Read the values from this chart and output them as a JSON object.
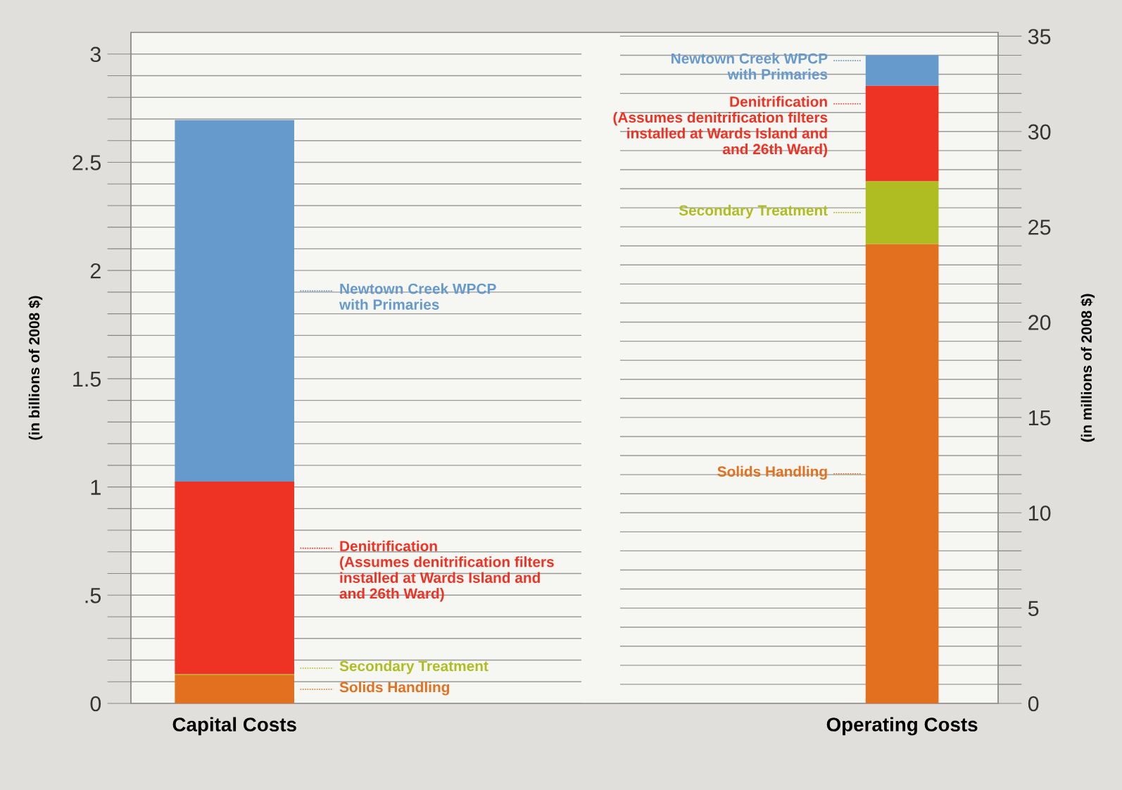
{
  "chart_data": [
    {
      "type": "bar",
      "stacked": true,
      "legend": "right",
      "categories": [
        "Capital Costs"
      ],
      "ylabel": "(in billions of 2008 $)",
      "ylim": [
        0,
        3.1
      ],
      "grid": "y",
      "yticks": [
        0,
        {
          "value": 0.1,
          "label": null
        },
        {
          "value": 0.2,
          "label": null
        },
        {
          "value": 0.3,
          "label": null
        },
        {
          "value": 0.4,
          "label": null
        },
        {
          "value": 0.5,
          "label": ".5"
        },
        {
          "value": 0.6,
          "label": null
        },
        {
          "value": 0.7,
          "label": null
        },
        {
          "value": 0.8,
          "label": null
        },
        {
          "value": 0.9,
          "label": null
        },
        1,
        {
          "value": 1.1,
          "label": null
        },
        {
          "value": 1.2,
          "label": null
        },
        {
          "value": 1.3,
          "label": null
        },
        {
          "value": 1.4,
          "label": null
        },
        1.5,
        {
          "value": 1.6,
          "label": null
        },
        {
          "value": 1.7,
          "label": null
        },
        {
          "value": 1.8,
          "label": null
        },
        {
          "value": 1.9,
          "label": null
        },
        2,
        {
          "value": 2.1,
          "label": null
        },
        {
          "value": 2.2,
          "label": null
        },
        {
          "value": 2.3,
          "label": null
        },
        {
          "value": 2.4,
          "label": null
        },
        2.5,
        {
          "value": 2.6,
          "label": null
        },
        {
          "value": 2.7,
          "label": null
        },
        {
          "value": 2.8,
          "label": null
        },
        {
          "value": 2.9,
          "label": null
        },
        3
      ],
      "series": [
        {
          "name": "Solids Handling",
          "color": "#e3701e",
          "values": [
            0.13
          ]
        },
        {
          "name": "Secondary Treatment",
          "color": "#afbd22",
          "values": [
            0.005
          ]
        },
        {
          "name": "Denitrification\n(Assumes denitrification filters\ninstalled at Wards Island and\nand 26th Ward)",
          "color": "#ee3224",
          "values": [
            0.89
          ]
        },
        {
          "name": "Newtown Creek WPCP\nwith Primaries",
          "color": "#6699cc",
          "values": [
            1.67
          ]
        }
      ]
    },
    {
      "type": "bar",
      "stacked": true,
      "legend": "left",
      "categories": [
        "Operating Costs"
      ],
      "ylabel": "(in millions of 2008 $)",
      "ylim": [
        0,
        35.2
      ],
      "grid": "y",
      "yticks": [
        0,
        {
          "value": 1,
          "label": null
        },
        {
          "value": 2,
          "label": null
        },
        {
          "value": 3,
          "label": null
        },
        {
          "value": 4,
          "label": null
        },
        5,
        {
          "value": 6,
          "label": null
        },
        {
          "value": 7,
          "label": null
        },
        {
          "value": 8,
          "label": null
        },
        {
          "value": 9,
          "label": null
        },
        10,
        {
          "value": 11,
          "label": null
        },
        {
          "value": 12,
          "label": null
        },
        {
          "value": 13,
          "label": null
        },
        {
          "value": 14,
          "label": null
        },
        15,
        {
          "value": 16,
          "label": null
        },
        {
          "value": 17,
          "label": null
        },
        {
          "value": 18,
          "label": null
        },
        {
          "value": 19,
          "label": null
        },
        20,
        {
          "value": 21,
          "label": null
        },
        {
          "value": 22,
          "label": null
        },
        {
          "value": 23,
          "label": null
        },
        {
          "value": 24,
          "label": null
        },
        25,
        {
          "value": 26,
          "label": null
        },
        {
          "value": 27,
          "label": null
        },
        {
          "value": 28,
          "label": null
        },
        {
          "value": 29,
          "label": null
        },
        30,
        {
          "value": 31,
          "label": null
        },
        {
          "value": 32,
          "label": null
        },
        {
          "value": 33,
          "label": null
        },
        {
          "value": 34,
          "label": null
        },
        35
      ],
      "series": [
        {
          "name": "Solids Handling",
          "color": "#e3701e",
          "values": [
            24.1
          ]
        },
        {
          "name": "Secondary Treatment",
          "color": "#afbd22",
          "values": [
            3.3
          ]
        },
        {
          "name": "Denitrification\n(Assumes denitrification filters\ninstalled at Wards Island and\nand 26th Ward)",
          "color": "#ee3224",
          "values": [
            5.0
          ]
        },
        {
          "name": "Newtown Creek WPCP\nwith Primaries",
          "color": "#6699cc",
          "values": [
            1.6
          ]
        }
      ]
    }
  ]
}
